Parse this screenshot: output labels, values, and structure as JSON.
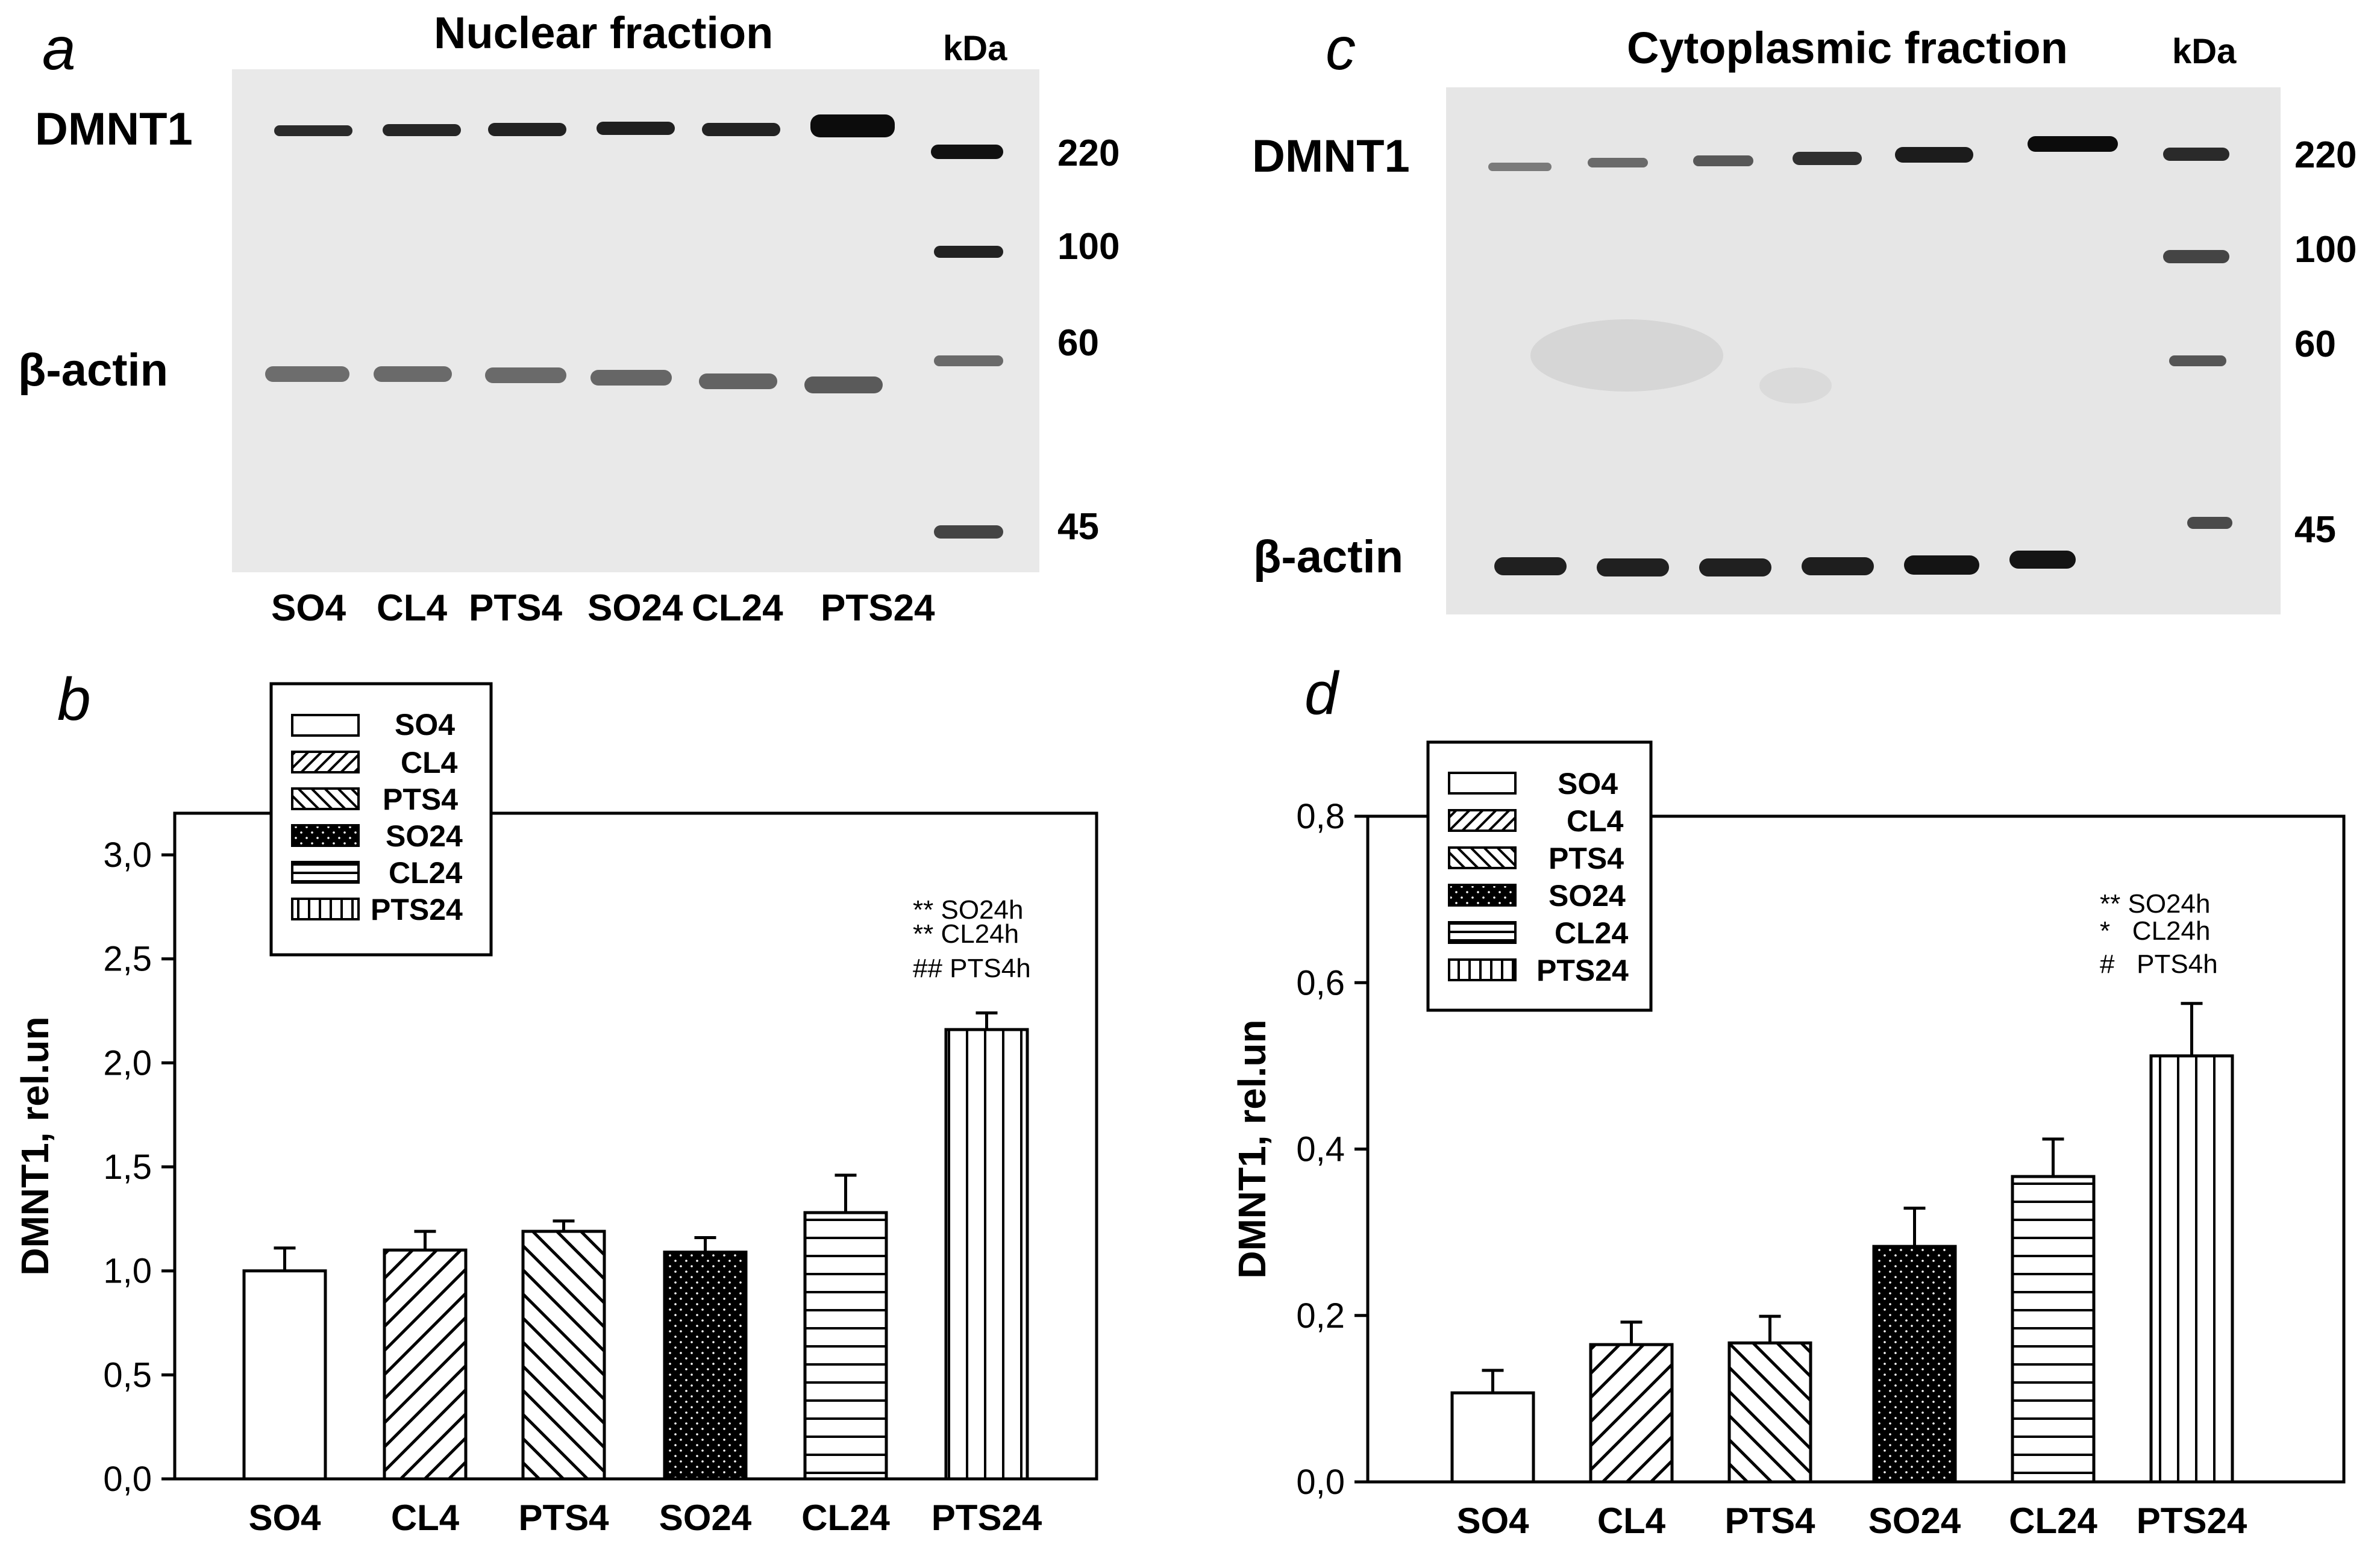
{
  "panels": {
    "a": {
      "letter": "a",
      "title": "Nuclear fraction",
      "kda_label": "kDa",
      "protein_top": "DMNT1",
      "protein_bottom": "β-actin",
      "markers": [
        "220",
        "100",
        "60",
        "45"
      ],
      "lanes": [
        "SO4",
        "CL4",
        "PTS4",
        "SO24",
        "CL24",
        "PTS24"
      ]
    },
    "c": {
      "letter": "c",
      "title": "Cytoplasmic fraction",
      "kda_label": "kDa",
      "protein_top": "DMNT1",
      "protein_bottom": "β-actin",
      "markers": [
        "220",
        "100",
        "60",
        "45"
      ]
    },
    "b": {
      "letter": "b"
    },
    "d": {
      "letter": "d"
    }
  },
  "legend": {
    "b": [
      "SO4",
      "CL4",
      "PTS4",
      "SO24",
      "CL24",
      "PTS24"
    ],
    "d": [
      "SO4",
      "CL4",
      "PTS4",
      "SO24",
      "CL24",
      "PTS24"
    ]
  },
  "annotations": {
    "b": [
      "** SO24h",
      "** CL24h",
      "## PTS4h"
    ],
    "d": [
      "** SO24h",
      "*   CL24h",
      "#   PTS4h"
    ]
  },
  "chart_data": [
    {
      "panel": "b",
      "type": "bar",
      "categories": [
        "SO4",
        "CL4",
        "PTS4",
        "SO24",
        "CL24",
        "PTS24"
      ],
      "values": [
        1.0,
        1.1,
        1.19,
        1.09,
        1.28,
        2.16
      ],
      "errors": [
        0.11,
        0.09,
        0.05,
        0.07,
        0.18,
        0.08
      ],
      "ylabel": "DMNT1, rel.un",
      "ylim": [
        0,
        3.2
      ],
      "yticks": [
        "0,0",
        "0,5",
        "1,0",
        "1,5",
        "2,0",
        "2,5",
        "3,0"
      ],
      "ytick_values": [
        0,
        0.5,
        1.0,
        1.5,
        2.0,
        2.5,
        3.0
      ],
      "patterns": [
        "none",
        "diag-up",
        "diag-down",
        "dots",
        "horizontal",
        "vertical"
      ]
    },
    {
      "panel": "d",
      "type": "bar",
      "categories": [
        "SO4",
        "CL4",
        "PTS4",
        "SO24",
        "CL24",
        "PTS24"
      ],
      "values": [
        0.107,
        0.165,
        0.167,
        0.283,
        0.367,
        0.512
      ],
      "errors": [
        0.027,
        0.027,
        0.032,
        0.046,
        0.045,
        0.063
      ],
      "ylabel": "DMNT1, rel.un",
      "ylim": [
        0,
        0.8
      ],
      "yticks": [
        "0,0",
        "0,2",
        "0,4",
        "0,6",
        "0,8"
      ],
      "ytick_values": [
        0,
        0.2,
        0.4,
        0.6,
        0.8
      ],
      "patterns": [
        "none",
        "diag-up",
        "diag-down",
        "dots",
        "horizontal",
        "vertical"
      ]
    }
  ]
}
